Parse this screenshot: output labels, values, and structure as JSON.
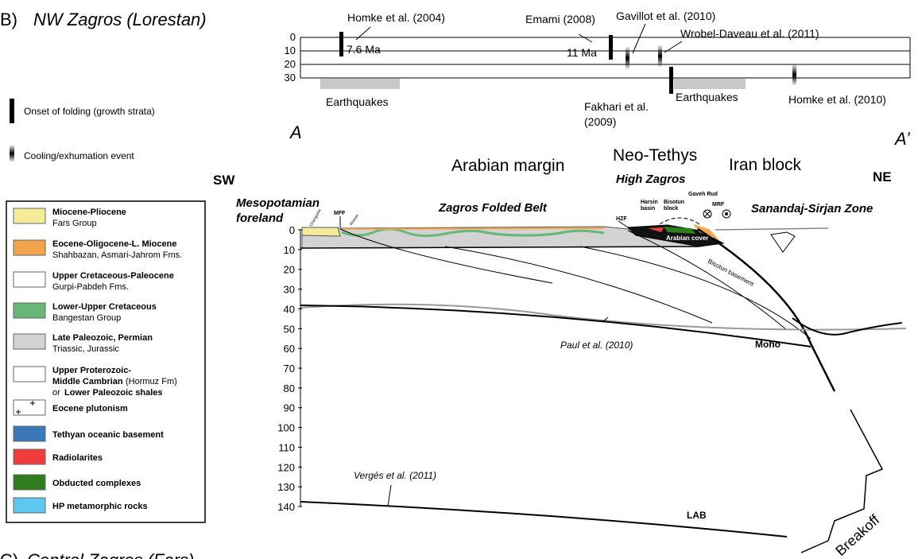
{
  "panel_label": "B)",
  "title": "NW Zagros (Lorestan)",
  "timeline": {
    "depth_ticks": [
      0,
      10,
      20,
      30
    ],
    "references": [
      "Homke et al. (2004)",
      "Emami (2008)",
      "Gavillot et al. (2010)",
      "Wrobel-Daveau et al. (2011)",
      "Fakhari et al.",
      "(2009)",
      "Homke et al. (2010)"
    ],
    "ages": [
      "7.6 Ma",
      "11 Ma"
    ],
    "earthquakes": [
      "Earthquakes",
      "Earthquakes"
    ]
  },
  "symbols": {
    "onset": "Onset of folding (growth strata)",
    "cooling": "Cooling/exhumation event"
  },
  "section": {
    "start": "A",
    "end": "A’",
    "sw": "SW",
    "ne": "NE",
    "arabian_margin": "Arabian margin",
    "neo_tethys": "Neo-Tethys",
    "high_zagros": "High Zagros",
    "iran_block": "Iran block",
    "foreland": [
      "Mesopotamian",
      "foreland"
    ],
    "folded_belt": "Zagros Folded Belt",
    "ssz": "Sanandaj-Sirjan Zone",
    "small_labels": [
      "HZF",
      "Harsin",
      "basin",
      "Bisotun",
      "block",
      "Gaveh Rud",
      "MRF",
      "MFF",
      "Changuleh",
      "Anaran"
    ],
    "arabian_cover": "Arabian cover",
    "bisotun_basement": "Bisotun basement",
    "moho": "Moho",
    "paul": "Paul et al. (2010)",
    "verges": "Vergés et al. (2011)",
    "lab": "LAB",
    "breakoff": "Breakoff",
    "depth_ticks": [
      0,
      10,
      20,
      30,
      40,
      50,
      60,
      70,
      80,
      90,
      100,
      110,
      120,
      130,
      140
    ]
  },
  "legend": [
    {
      "title": "Miocene-Pliocene",
      "subtitle": "Fars Group"
    },
    {
      "title": "Eocene-Oligocene-L. Miocene",
      "subtitle": "Shahbazan, Asmari-Jahrom Fms."
    },
    {
      "title": "Upper Cretaceous-Paleocene",
      "subtitle": "Gurpi-Pabdeh Fms."
    },
    {
      "title": "Lower-Upper Cretaceous",
      "subtitle": "Bangestan Group"
    },
    {
      "title": "Late Paleozoic, Permian",
      "subtitle": "Triassic, Jurassic"
    },
    {
      "title": "Upper Proterozoic-",
      "subtitle": "Middle Cambrian",
      "extra": [
        "(Hormuz Fm)",
        "or",
        "Lower Paleozoic shales"
      ]
    },
    {
      "title": "Eocene plutonism"
    },
    {
      "title": "Tethyan oceanic basement"
    },
    {
      "title": "Radiolarites"
    },
    {
      "title": "Obducted complexes"
    },
    {
      "title": "HP metamorphic rocks"
    }
  ],
  "next_panel": {
    "label": "C)",
    "title": "Central Zagros (Fars)"
  }
}
